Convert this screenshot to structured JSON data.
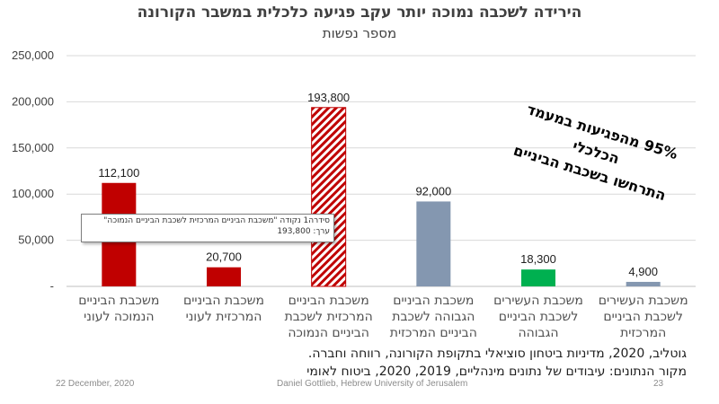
{
  "chart_data": {
    "type": "bar",
    "title": "הירידה לשכבה נמוכה יותר עקב פגיעה כלכלית במשבר הקורונה",
    "subtitle": "מספר נפשות",
    "ylim": [
      0,
      250000
    ],
    "yticks": [
      "250,000",
      "200,000",
      "150,000",
      "100,000",
      "50,000",
      "-"
    ],
    "grid": true,
    "categories": [
      "משכבת הביניים הנמוכה לעוני",
      "משכבת הביניים המרכזית לעוני",
      "משכבת הביניים המרכזית לשכבת הביניים הנמוכה",
      "משכבת הביניים הגבוהה לשכבת הביניים המרכזית",
      "משכבת העשירים לשכבת הביניים הגבוהה",
      "משכבת העשירים לשכבת הביניים המרכזית"
    ],
    "values": [
      112100,
      20700,
      193800,
      92000,
      18300,
      4900
    ],
    "value_labels": [
      "112,100",
      "20,700",
      "193,800",
      "92,000",
      "18,300",
      "4,900"
    ],
    "colors": [
      "#c00000",
      "#c00000",
      "#c00000",
      "#8497b0",
      "#00b050",
      "#8497b0"
    ],
    "hatched": [
      false,
      false,
      true,
      false,
      false,
      false
    ],
    "annotation_line1": "95% מהפגיעות במעמד הכלכלי",
    "annotation_line2": "התרחשו בשכבת הביניים"
  },
  "tooltip": {
    "line1": "סידרה1 נקודה \"משכבת הביניים המרכזית לשכבת הביניים הנמוכה\"",
    "line2": "ערך: 193,800"
  },
  "sources": {
    "line1": "גוטליב, 2020, מדיניות ביטחון סוציאלי בתקופת הקורונה, רווחה וחברה.",
    "line2": "מקור הנתונים: עיבודים של נתונים מינהליים, 2019, 2020, ביטוח לאומי"
  },
  "footer": {
    "date": "22 December, 2020",
    "author": "Daniel Gottlieb, Hebrew University of Jerusalem",
    "page": "23"
  }
}
